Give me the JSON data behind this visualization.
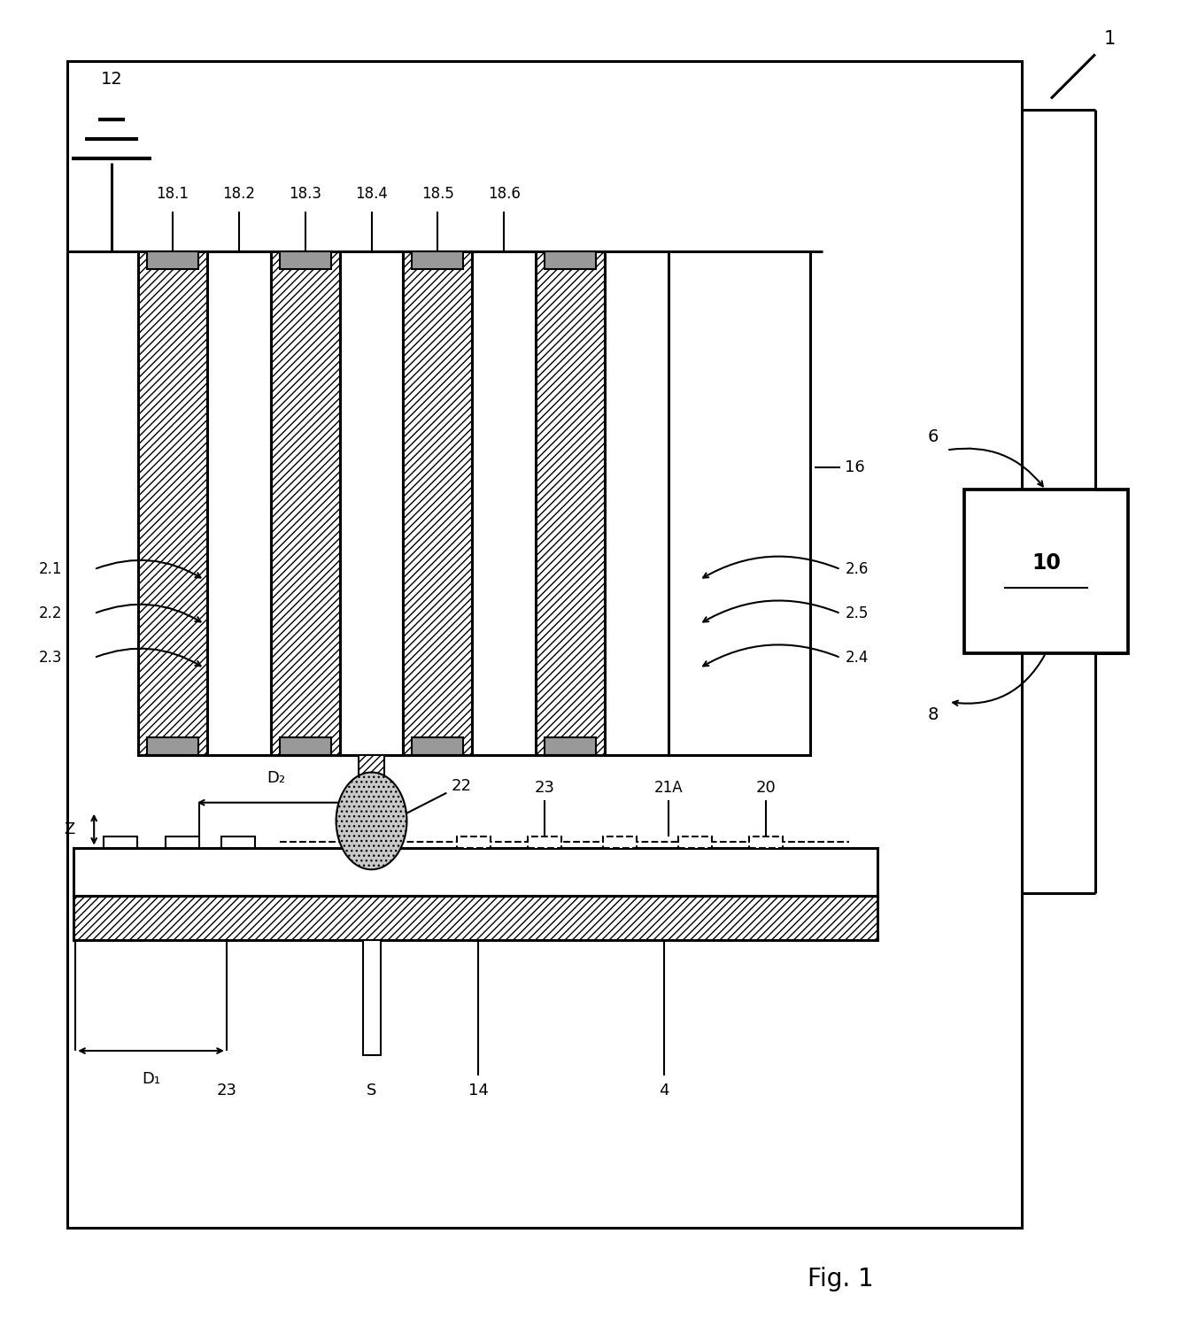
{
  "bg_color": "#ffffff",
  "lc": "#000000",
  "fig_label": "Fig. 1",
  "electrode_labels": [
    "18.1",
    "18.2",
    "18.3",
    "18.4",
    "18.5",
    "18.6"
  ],
  "gap_labels_left": [
    "2.1",
    "2.2",
    "2.3"
  ],
  "gap_labels_right": [
    "2.6",
    "2.5",
    "2.4"
  ],
  "note_1": "1",
  "note_12": "12",
  "note_16": "16",
  "note_10": "10",
  "note_6": "6",
  "note_8": "8",
  "note_22": "22",
  "note_23": "23",
  "note_21A": "21A",
  "note_20": "20",
  "note_Z": "Z",
  "note_D1": "D₁",
  "note_D2": "D₂",
  "note_S": "S",
  "note_14": "14",
  "note_4": "4"
}
